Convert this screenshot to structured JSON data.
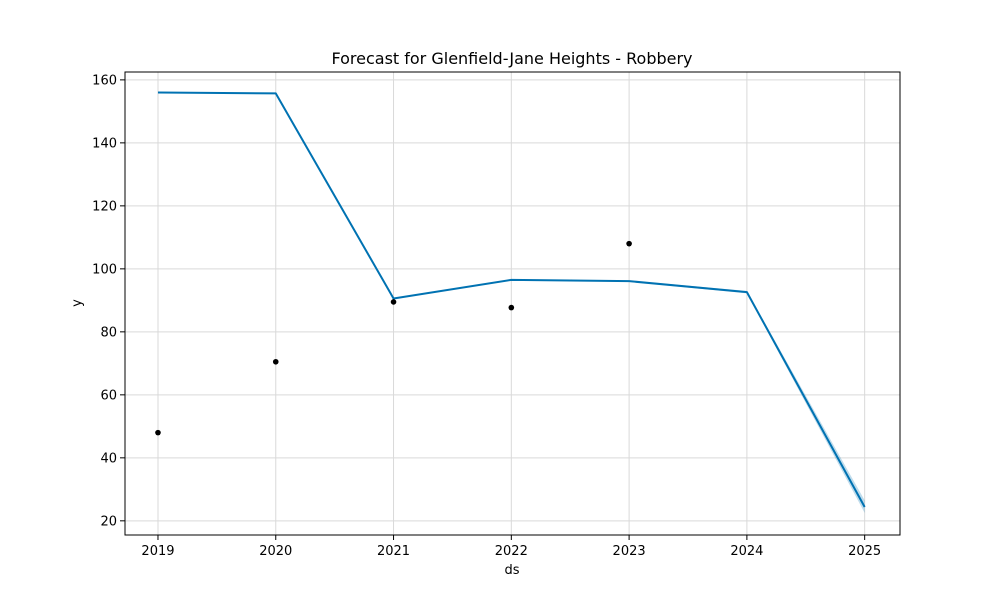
{
  "chart_data": {
    "type": "line",
    "title": "Forecast for Glenfield-Jane Heights - Robbery",
    "xlabel": "ds",
    "ylabel": "y",
    "x_ticks": [
      "2019",
      "2020",
      "2021",
      "2022",
      "2023",
      "2024",
      "2025"
    ],
    "y_ticks": [
      20,
      40,
      60,
      80,
      100,
      120,
      140,
      160
    ],
    "xlim": [
      2018.72,
      2025.3
    ],
    "ylim": [
      15.5,
      162.5
    ],
    "grid": true,
    "series": [
      {
        "kind": "forecast-line",
        "color": "#0072B2",
        "x": [
          2019,
          2020,
          2021,
          2022,
          2023,
          2024,
          2025
        ],
        "y": [
          156,
          155.7,
          90.6,
          96.5,
          96.1,
          92.6,
          24.4
        ]
      },
      {
        "kind": "uncertainty-band",
        "color": "#0072B2",
        "x": [
          2019,
          2020,
          2021,
          2022,
          2023,
          2024,
          2025
        ],
        "lower": [
          155.8,
          155.5,
          90.4,
          96.3,
          95.9,
          92.2,
          22.5
        ],
        "upper": [
          156.2,
          155.9,
          90.8,
          96.7,
          96.3,
          93.0,
          26.5
        ]
      },
      {
        "kind": "observations",
        "color": "#000000",
        "x": [
          2019,
          2020,
          2021,
          2022,
          2023
        ],
        "y": [
          48,
          70.5,
          89.5,
          87.7,
          108
        ]
      }
    ]
  }
}
